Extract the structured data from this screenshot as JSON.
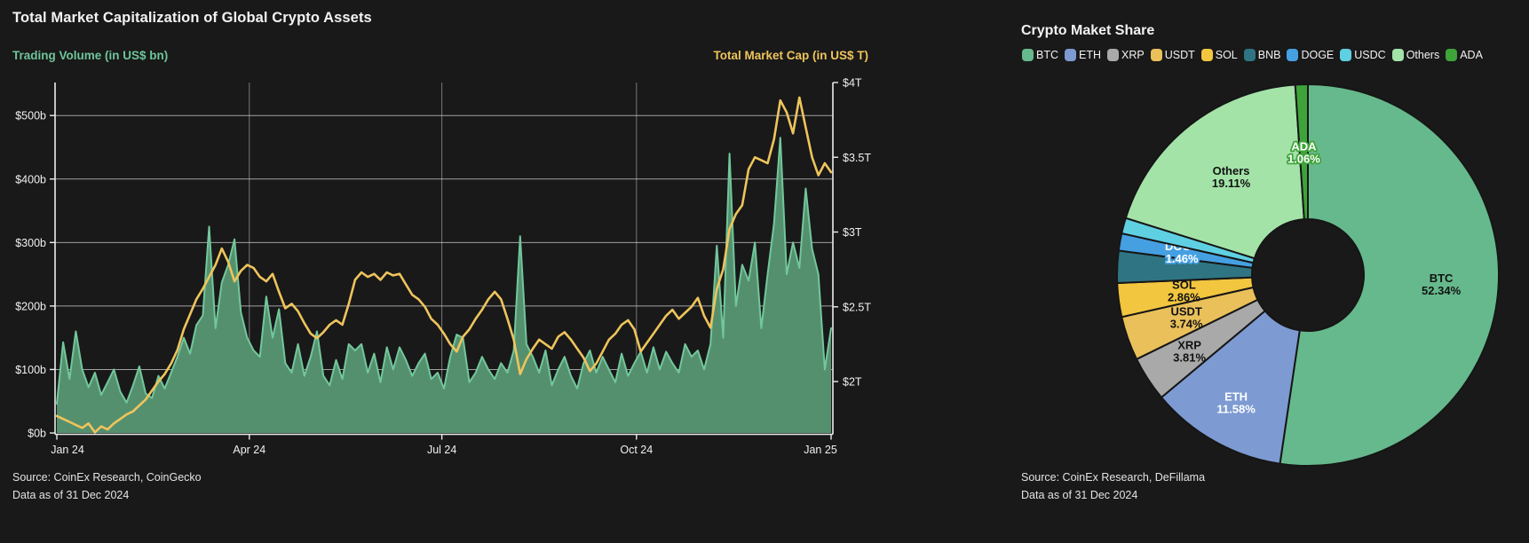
{
  "chart_data": [
    {
      "type": "area",
      "title": "Total Market Capitalization of Global Crypto Assets",
      "source_line1": "Source: CoinEx Research, CoinGecko",
      "source_line2": "Data as of 31 Dec 2024",
      "left_axis": {
        "label": "Trading Volume (in US$ bn)",
        "color": "#6ec59a",
        "tick_labels": [
          "$0b",
          "$100b",
          "$200b",
          "$300b",
          "$400b",
          "$500b"
        ],
        "tick_values": [
          0,
          100,
          200,
          300,
          400,
          500
        ],
        "range": [
          0,
          552
        ]
      },
      "right_axis": {
        "label": "Total Market Cap (in US$ T)",
        "color": "#eec45c",
        "tick_labels": [
          "$2T",
          "$2.5T",
          "$3T",
          "$3.5T",
          "$4T"
        ],
        "tick_values": [
          2,
          2.5,
          3,
          3.5,
          4
        ],
        "range": [
          1.656,
          4.0
        ]
      },
      "x_axis": {
        "tick_labels": [
          "Jan 24",
          "Apr 24",
          "Jul 24",
          "Oct 24",
          "Jan 25"
        ],
        "tick_days": [
          0,
          91,
          182,
          274,
          366
        ],
        "range_days": [
          0,
          366
        ]
      },
      "sample_interval_days": 3,
      "series": [
        {
          "name": "Trading Volume (in US$ bn)",
          "type": "area",
          "axis": "left",
          "line_color": "#72c79c",
          "fill_color": "#55906e",
          "values": [
            46,
            143,
            85,
            160,
            100,
            72,
            95,
            60,
            80,
            100,
            65,
            48,
            75,
            105,
            62,
            55,
            90,
            70,
            95,
            120,
            150,
            125,
            170,
            185,
            325,
            165,
            237,
            265,
            305,
            190,
            150,
            130,
            120,
            215,
            150,
            195,
            110,
            95,
            140,
            90,
            120,
            160,
            90,
            75,
            115,
            85,
            140,
            130,
            140,
            95,
            125,
            80,
            135,
            100,
            135,
            115,
            90,
            110,
            125,
            85,
            95,
            70,
            120,
            155,
            150,
            80,
            95,
            120,
            100,
            85,
            110,
            95,
            130,
            310,
            140,
            120,
            95,
            130,
            75,
            100,
            120,
            90,
            70,
            110,
            130,
            95,
            120,
            100,
            80,
            125,
            90,
            110,
            128,
            95,
            135,
            100,
            128,
            110,
            95,
            140,
            120,
            130,
            100,
            140,
            295,
            150,
            440,
            200,
            265,
            240,
            300,
            165,
            250,
            330,
            465,
            250,
            300,
            260,
            385,
            290,
            250,
            100,
            165
          ]
        },
        {
          "name": "Total Market Cap (in US$ T)",
          "type": "line",
          "axis": "right",
          "line_color": "#eec45c",
          "values": [
            1.77,
            1.75,
            1.73,
            1.71,
            1.69,
            1.72,
            1.66,
            1.7,
            1.68,
            1.72,
            1.75,
            1.78,
            1.8,
            1.84,
            1.88,
            1.94,
            2.0,
            2.05,
            2.12,
            2.21,
            2.35,
            2.45,
            2.55,
            2.62,
            2.7,
            2.78,
            2.89,
            2.8,
            2.67,
            2.74,
            2.78,
            2.76,
            2.7,
            2.67,
            2.72,
            2.6,
            2.49,
            2.52,
            2.47,
            2.39,
            2.32,
            2.29,
            2.33,
            2.38,
            2.41,
            2.38,
            2.52,
            2.68,
            2.73,
            2.7,
            2.72,
            2.68,
            2.73,
            2.71,
            2.72,
            2.65,
            2.58,
            2.55,
            2.5,
            2.42,
            2.38,
            2.32,
            2.25,
            2.2,
            2.3,
            2.35,
            2.42,
            2.48,
            2.55,
            2.6,
            2.55,
            2.42,
            2.28,
            2.05,
            2.15,
            2.22,
            2.28,
            2.25,
            2.22,
            2.3,
            2.33,
            2.28,
            2.22,
            2.16,
            2.07,
            2.12,
            2.2,
            2.28,
            2.32,
            2.38,
            2.41,
            2.35,
            2.2,
            2.26,
            2.32,
            2.38,
            2.44,
            2.48,
            2.42,
            2.46,
            2.5,
            2.56,
            2.44,
            2.36,
            2.62,
            2.75,
            3.02,
            3.12,
            3.18,
            3.42,
            3.5,
            3.48,
            3.46,
            3.62,
            3.88,
            3.8,
            3.66,
            3.9,
            3.7,
            3.5,
            3.38,
            3.46,
            3.4
          ]
        }
      ]
    },
    {
      "type": "pie",
      "title": "Crypto Maket Share",
      "source_line1": "Source: CoinEx Research, DeFillama",
      "source_line2": "Data as of 31 Dec 2024",
      "donut": true,
      "slices": [
        {
          "name": "BTC",
          "value": 52.34,
          "color": "#66b98c",
          "label_shown": true,
          "label_color": "#121212"
        },
        {
          "name": "ETH",
          "value": 11.58,
          "color": "#7d9bd2",
          "label_shown": true,
          "label_color": "#ffffff"
        },
        {
          "name": "XRP",
          "value": 3.81,
          "color": "#a9a9a9",
          "label_shown": true,
          "label_color": "#121212"
        },
        {
          "name": "USDT",
          "value": 3.74,
          "color": "#e9c05a",
          "label_shown": true,
          "label_color": "#121212"
        },
        {
          "name": "SOL",
          "value": 2.86,
          "color": "#f2c63f",
          "label_shown": true,
          "label_color": "#121212"
        },
        {
          "name": "BNB",
          "value": 2.72,
          "color": "#2f7482",
          "label_shown": false,
          "label_color": "#ffffff"
        },
        {
          "name": "DOGE",
          "value": 1.46,
          "color": "#45a0e2",
          "label_shown": true,
          "label_color": "#ffffff",
          "label_outlined": true
        },
        {
          "name": "USDC",
          "value": 1.32,
          "color": "#5fd0e2",
          "label_shown": false,
          "label_color": "#ffffff"
        },
        {
          "name": "Others",
          "value": 19.11,
          "color": "#a3e3a8",
          "label_shown": true,
          "label_color": "#121212"
        },
        {
          "name": "ADA",
          "value": 1.06,
          "color": "#3ea339",
          "label_shown": true,
          "label_color": "#ffffff",
          "label_outlined": true
        }
      ]
    }
  ]
}
